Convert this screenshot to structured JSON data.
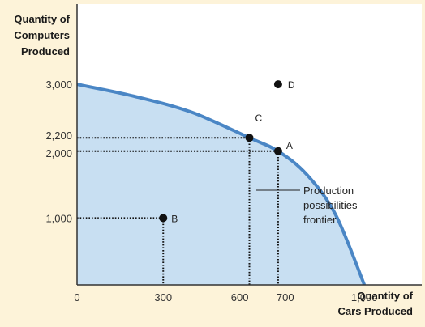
{
  "chart_data": {
    "type": "line",
    "ylabel": [
      "Quantity of",
      "Computers",
      "Produced"
    ],
    "xlabel": [
      "Quantity of",
      "Cars Produced"
    ],
    "xlim": [
      0,
      1200
    ],
    "ylim": [
      0,
      4200
    ],
    "x_ticks": [
      {
        "value": 0,
        "label": "0"
      },
      {
        "value": 300,
        "label": "300"
      },
      {
        "value": 600,
        "label": "600"
      },
      {
        "value": 700,
        "label": "700"
      },
      {
        "value": 1000,
        "label": "1,000"
      }
    ],
    "y_ticks": [
      {
        "value": 1000,
        "label": "1,000"
      },
      {
        "value": 2000,
        "label": "2,000"
      },
      {
        "value": 2200,
        "label": "2,200"
      },
      {
        "value": 3000,
        "label": "3,000"
      }
    ],
    "frontier": [
      {
        "x": 0,
        "y": 3000
      },
      {
        "x": 200,
        "y": 2820
      },
      {
        "x": 400,
        "y": 2580
      },
      {
        "x": 600,
        "y": 2200
      },
      {
        "x": 700,
        "y": 2000
      },
      {
        "x": 800,
        "y": 1650
      },
      {
        "x": 900,
        "y": 1050
      },
      {
        "x": 1000,
        "y": 0
      }
    ],
    "points": [
      {
        "label": "A",
        "x": 700,
        "y": 2000
      },
      {
        "label": "B",
        "x": 300,
        "y": 1000
      },
      {
        "label": "C",
        "x": 600,
        "y": 2200
      },
      {
        "label": "D",
        "x": 700,
        "y": 3000
      }
    ],
    "annotation": [
      "Production",
      "possibilities",
      "frontier"
    ],
    "colors": {
      "background": "#fdf3d9",
      "plot_bg": "#ffffff",
      "fill": "#c8dff2",
      "curve": "#4a86c5",
      "axis": "#333333",
      "point": "#111111"
    }
  }
}
